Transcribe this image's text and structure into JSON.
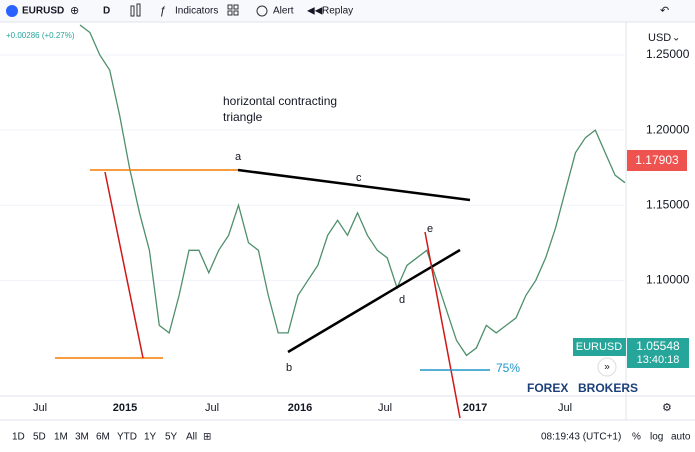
{
  "toolbar": {
    "symbol": "EURUSD",
    "interval": "D",
    "indicators": "Indicators",
    "alert": "Alert",
    "replay": "Replay"
  },
  "change": "+0.00286 (+0.27%)",
  "currency": "USD",
  "annotation": {
    "title_line1": "horizontal contracting",
    "title_line2": "triangle",
    "points": [
      "a",
      "b",
      "c",
      "d",
      "e"
    ],
    "retrace": "75%"
  },
  "price_labels": {
    "marker": "1.17903",
    "symbol": "EURUSD",
    "last": "1.05548",
    "countdown": "13:40:18"
  },
  "time_axis": [
    "Jul",
    "2015",
    "Jul",
    "2016",
    "Jul",
    "2017",
    "Jul"
  ],
  "watermark": {
    "part1": "FOREX",
    "part2": "BROKERS"
  },
  "ranges": [
    "1D",
    "5D",
    "1M",
    "3M",
    "6M",
    "YTD",
    "1Y",
    "5Y",
    "All"
  ],
  "clock": "08:19:43 (UTC+1)",
  "scale_options": [
    "%",
    "log",
    "auto"
  ],
  "chart_data": {
    "type": "line",
    "color": "#4f8f6b",
    "values": [
      1.27,
      1.265,
      1.25,
      1.24,
      1.21,
      1.175,
      1.145,
      1.12,
      1.07,
      1.065,
      1.09,
      1.12,
      1.12,
      1.105,
      1.12,
      1.13,
      1.15,
      1.125,
      1.12,
      1.09,
      1.065,
      1.065,
      1.09,
      1.1,
      1.11,
      1.13,
      1.14,
      1.13,
      1.145,
      1.13,
      1.12,
      1.115,
      1.095,
      1.11,
      1.115,
      1.12,
      1.1,
      1.08,
      1.06,
      1.05,
      1.055,
      1.07,
      1.065,
      1.07,
      1.075,
      1.09,
      1.1,
      1.115,
      1.135,
      1.16,
      1.185,
      1.195,
      1.2,
      1.185,
      1.17,
      1.165
    ],
    "ylim": [
      1.023,
      1.272
    ],
    "yticks": [
      {
        "value": 1.25,
        "label": "1.25000"
      },
      {
        "value": 1.2,
        "label": "1.20000"
      },
      {
        "value": 1.15,
        "label": "1.15000"
      },
      {
        "value": 1.1,
        "label": "1.10000"
      }
    ]
  }
}
